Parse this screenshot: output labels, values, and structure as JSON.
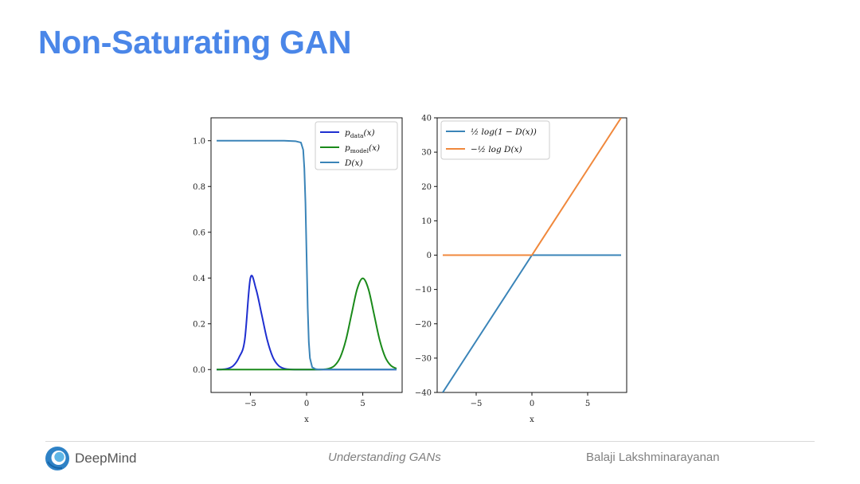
{
  "slide": {
    "title": "Non-Saturating GAN"
  },
  "footer": {
    "brand": "DeepMind",
    "center": "Understanding GANs",
    "author": "Balaji Lakshminarayanan"
  },
  "colors": {
    "title": "#4a86e8",
    "p_data": "#1f2fd0",
    "p_model": "#1a8a1a",
    "D": "#3a84b8",
    "orange": "#f0883c"
  },
  "chart_data": [
    {
      "type": "line",
      "xlabel": "x",
      "xlim": [
        -8.5,
        8.5
      ],
      "ylim": [
        -0.1,
        1.1
      ],
      "xticks": [
        -5,
        0,
        5
      ],
      "xtick_labels": [
        "−5",
        "0",
        "5"
      ],
      "yticks": [
        0.0,
        0.2,
        0.4,
        0.6,
        0.8,
        1.0
      ],
      "ytick_labels": [
        "0.0",
        "0.2",
        "0.4",
        "0.6",
        "0.8",
        "1.0"
      ],
      "legend_position": "top-right",
      "series": [
        {
          "name": "p_data(x)",
          "legend": {
            "main": "p",
            "sub": "data",
            "suffix": "(x)"
          },
          "color": "#1f2fd0",
          "x": [
            -8,
            -7.5,
            -7,
            -6.5,
            -6,
            -5.5,
            -5,
            -4.5,
            -4,
            -3.5,
            -3,
            -2.5,
            -2,
            -1.5,
            -1,
            0,
            1,
            2,
            3,
            4,
            5,
            6,
            7,
            8
          ],
          "y": [
            0.0001,
            0.0009,
            0.0044,
            0.0175,
            0.054,
            0.1295,
            0.3989,
            0.3521,
            0.242,
            0.1295,
            0.054,
            0.0175,
            0.0044,
            0.0009,
            0.0001,
            0,
            0,
            0,
            0,
            0,
            0,
            0,
            0,
            0
          ]
        },
        {
          "name": "p_model(x)",
          "legend": {
            "main": "p",
            "sub": "model",
            "suffix": "(x)"
          },
          "color": "#1a8a1a",
          "x": [
            -8,
            -6,
            -4,
            -2,
            0,
            1,
            1.5,
            2,
            2.5,
            3,
            3.5,
            4,
            4.5,
            5,
            5.5,
            6,
            6.5,
            7,
            7.5,
            8
          ],
          "y": [
            0,
            0,
            0,
            0,
            0,
            0.0001,
            0.0009,
            0.0044,
            0.0175,
            0.054,
            0.1295,
            0.242,
            0.3521,
            0.3989,
            0.3521,
            0.242,
            0.1295,
            0.054,
            0.0175,
            0.0044
          ]
        },
        {
          "name": "D(x)",
          "legend": {
            "main": "D",
            "sub": "",
            "suffix": "(x)"
          },
          "color": "#3a84b8",
          "x": [
            -8,
            -2,
            -1,
            -0.5,
            -0.3,
            -0.2,
            -0.1,
            0,
            0.1,
            0.2,
            0.3,
            0.5,
            0.8,
            1,
            2,
            8
          ],
          "y": [
            1,
            1,
            0.998,
            0.992,
            0.96,
            0.88,
            0.73,
            0.5,
            0.27,
            0.12,
            0.05,
            0.01,
            0.002,
            0.001,
            0.0005,
            0.0005
          ]
        }
      ]
    },
    {
      "type": "line",
      "xlabel": "x",
      "xlim": [
        -8.5,
        8.5
      ],
      "ylim": [
        -40,
        40
      ],
      "xticks": [
        -5,
        0,
        5
      ],
      "xtick_labels": [
        "−5",
        "0",
        "5"
      ],
      "yticks": [
        -40,
        -30,
        -20,
        -10,
        0,
        10,
        20,
        30,
        40
      ],
      "ytick_labels": [
        "−40",
        "−30",
        "−20",
        "−10",
        "0",
        "10",
        "20",
        "30",
        "40"
      ],
      "legend_position": "top-left",
      "series": [
        {
          "name": "½ log(1 − D(x))",
          "legend": {
            "main": "½ log(1 − D(x))"
          },
          "color": "#3a84b8",
          "x": [
            -8,
            -4,
            0,
            0.5,
            1,
            8
          ],
          "y": [
            -40,
            -20,
            0,
            0,
            0,
            0
          ]
        },
        {
          "name": "−½ log D(x)",
          "legend": {
            "main": "−½ log D(x)"
          },
          "color": "#f0883c",
          "x": [
            -8,
            -4,
            0,
            0.3,
            1,
            4,
            8
          ],
          "y": [
            0,
            0,
            0,
            1.5,
            5,
            20,
            40
          ]
        }
      ]
    }
  ]
}
